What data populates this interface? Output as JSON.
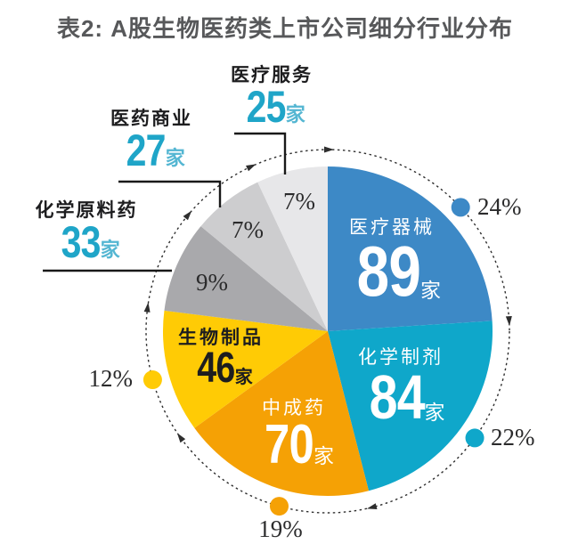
{
  "title": "表2: A股生物医药类上市公司细分行业分布",
  "chart_data": {
    "type": "pie",
    "title": "A股生物医药类上市公司细分行业分布",
    "unit": "家",
    "start_angle_deg": 0,
    "direction": "clockwise",
    "outer_ring": {
      "style": "dashed-circle",
      "arrows": "clockwise"
    },
    "slices": [
      {
        "id": "medical-devices",
        "label": "医疗器械",
        "count": 89,
        "percent": 24,
        "percent_label": "24%",
        "color": "#3d89c6",
        "label_style": "inside-white"
      },
      {
        "id": "chemical-preparations",
        "label": "化学制剂",
        "count": 84,
        "percent": 22,
        "percent_label": "22%",
        "color": "#0fa7ca",
        "label_style": "inside-white"
      },
      {
        "id": "tcm-patent-medicine",
        "label": "中成药",
        "count": 70,
        "percent": 19,
        "percent_label": "19%",
        "color": "#f5a105",
        "label_style": "inside-white"
      },
      {
        "id": "biological-products",
        "label": "生物制品",
        "count": 46,
        "percent": 12,
        "percent_label": "12%",
        "color": "#ffcb05",
        "label_style": "inside-black"
      },
      {
        "id": "chemical-api",
        "label": "化学原料药",
        "count": 33,
        "percent": 9,
        "percent_label": "9%",
        "color": "#a9a9ac",
        "label_style": "callout"
      },
      {
        "id": "pharma-commerce",
        "label": "医药商业",
        "count": 27,
        "percent": 7,
        "percent_label": "7%",
        "color": "#cdcdcf",
        "label_style": "callout"
      },
      {
        "id": "medical-services",
        "label": "医疗服务",
        "count": 25,
        "percent": 7,
        "percent_label": "7%",
        "color": "#e7e7e9",
        "label_style": "callout"
      }
    ]
  },
  "colors": {
    "accent_cyan_number": "#1fa5c8",
    "accent_cyan_suffix": "#54b6d2",
    "title_text": "#57585a",
    "dark_text": "#1d1d1f",
    "ring_stroke": "#2e2e2e"
  }
}
